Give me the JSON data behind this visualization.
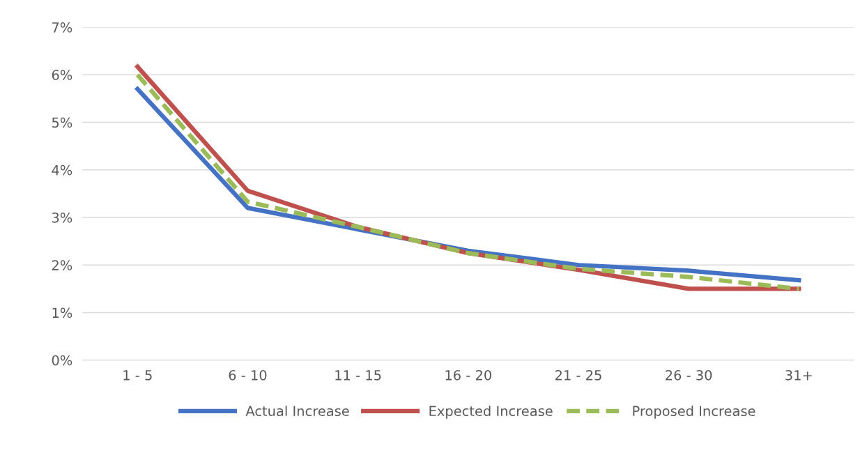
{
  "chart_data": {
    "type": "line",
    "categories": [
      "1 - 5",
      "6 - 10",
      "11 - 15",
      "16 - 20",
      "21 - 25",
      "26 - 30",
      "31+"
    ],
    "series": [
      {
        "name": "Actual Increase",
        "color": "#4472c4",
        "line_style": "solid",
        "values": [
          5.7,
          3.2,
          2.75,
          2.3,
          2.0,
          1.88,
          1.68
        ]
      },
      {
        "name": "Expected Increase",
        "color": "#c0504d",
        "line_style": "solid",
        "values": [
          6.17,
          3.56,
          2.8,
          2.25,
          1.9,
          1.5,
          1.5
        ]
      },
      {
        "name": "Proposed Increase",
        "color": "#9bbb59",
        "line_style": "dashed",
        "values": [
          6.0,
          3.33,
          2.8,
          2.25,
          1.92,
          1.75,
          1.5
        ]
      }
    ],
    "ylim": [
      0,
      7
    ],
    "yticks": [
      {
        "value": 0,
        "label": "0%"
      },
      {
        "value": 1,
        "label": "1%"
      },
      {
        "value": 2,
        "label": "2%"
      },
      {
        "value": 3,
        "label": "3%"
      },
      {
        "value": 4,
        "label": "4%"
      },
      {
        "value": 5,
        "label": "5%"
      },
      {
        "value": 6,
        "label": "6%"
      },
      {
        "value": 7,
        "label": "7%"
      }
    ],
    "grid": "y",
    "legend": "bottom",
    "marker": "none"
  }
}
